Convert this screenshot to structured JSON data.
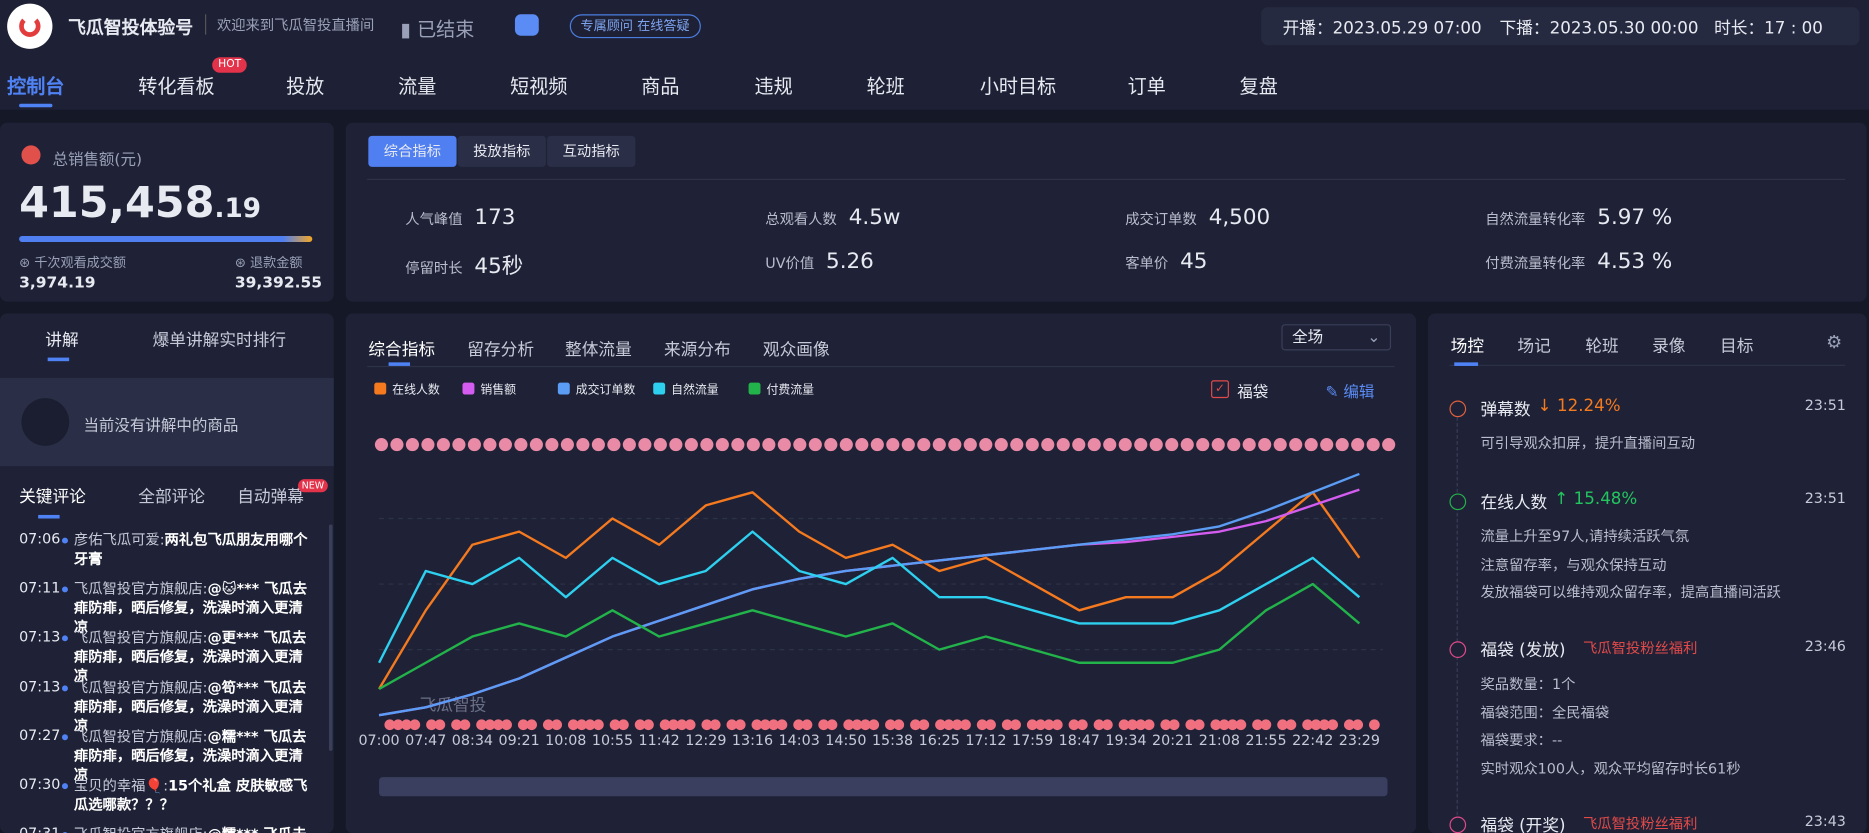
{
  "header": {
    "brand": "飞瓜智投体验号",
    "welcome": "欢迎来到飞瓜智投直播间",
    "status": "已结束",
    "advisor": "专属顾问 在线答疑",
    "start": "开播：2023.05.29 07:00",
    "end": "下播：2023.05.30 00:00",
    "duration": "时长：17 : 00"
  },
  "nav": {
    "items": [
      "控制台",
      "转化看板",
      "投放",
      "流量",
      "短视频",
      "商品",
      "违规",
      "轮班",
      "小时目标",
      "订单",
      "复盘"
    ],
    "badge": "HOT"
  },
  "sales": {
    "label": "总销售额(元)",
    "value": "415,458",
    "decimals": ".19",
    "gpm_label": "千次观看成交额",
    "gpm": "3,974.19",
    "refund_label": "退款金额",
    "refund": "39,392.55"
  },
  "metrics": {
    "tabs": [
      "综合指标",
      "投放指标",
      "互动指标"
    ],
    "items": [
      {
        "label": "人气峰值",
        "value": "173"
      },
      {
        "label": "总观看人数",
        "value": "4.5w"
      },
      {
        "label": "成交订单数",
        "value": "4,500"
      },
      {
        "label": "自然流量转化率",
        "value": "5.97 %"
      },
      {
        "label": "停留时长",
        "value": "45秒"
      },
      {
        "label": "UV价值",
        "value": "5.26"
      },
      {
        "label": "客单价",
        "value": "45"
      },
      {
        "label": "付费流量转化率",
        "value": "4.53 %"
      }
    ]
  },
  "explain": {
    "tabs": [
      "讲解",
      "爆单讲解实时排行"
    ],
    "empty": "当前没有讲解中的商品",
    "comment_tabs": [
      "关键评论",
      "全部评论",
      "自动弹幕"
    ],
    "comment_badge": "NEW",
    "comments": [
      {
        "time": "07:06",
        "user": "彦佑飞瓜可爱:",
        "text": "两礼包飞瓜朋友用哪个牙膏"
      },
      {
        "time": "07:11",
        "user": "飞瓜智投官方旗舰店:",
        "text": "@🐱*** 飞瓜去痱防痱，晒后修复，洗澡时滴入更清凉"
      },
      {
        "time": "07:13",
        "user": "飞瓜智投官方旗舰店:",
        "text": "@更*** 飞瓜去痱防痱，晒后修复，洗澡时滴入更清凉"
      },
      {
        "time": "07:13",
        "user": "飞瓜智投官方旗舰店:",
        "text": "@笱*** 飞瓜去痱防痱，晒后修复，洗澡时滴入更清凉"
      },
      {
        "time": "07:27",
        "user": "飞瓜智投官方旗舰店:",
        "text": "@糯*** 飞瓜去痱防痱，晒后修复，洗澡时滴入更清凉"
      },
      {
        "time": "07:30",
        "user": "宝贝的幸福🎈:",
        "text": "15个礼盒 皮肤敏感飞瓜选哪款？？？"
      },
      {
        "time": "07:31",
        "user": "飞瓜智投官方旗舰店:",
        "text": "@糯*** 飞瓜去痱防痱"
      }
    ]
  },
  "chart_panel": {
    "tabs": [
      "综合指标",
      "留存分析",
      "整体流量",
      "来源分布",
      "观众画像"
    ],
    "scope": "全场",
    "bag": "福袋",
    "edit": "编辑",
    "watermark": "飞瓜智投"
  },
  "chart_data": {
    "type": "line",
    "categories": [
      "07:00",
      "07:47",
      "08:34",
      "09:21",
      "10:08",
      "10:55",
      "11:42",
      "12:29",
      "13:16",
      "14:03",
      "14:50",
      "15:38",
      "16:25",
      "17:12",
      "17:59",
      "18:47",
      "19:34",
      "20:21",
      "21:08",
      "21:55",
      "22:42",
      "23:29"
    ],
    "ylim": [
      0,
      100
    ],
    "series": [
      {
        "name": "在线人数",
        "color": "#f57a1f",
        "values": [
          10,
          40,
          65,
          70,
          60,
          75,
          65,
          80,
          85,
          70,
          60,
          65,
          55,
          60,
          50,
          40,
          45,
          45,
          55,
          70,
          85,
          60
        ]
      },
      {
        "name": "销售额",
        "color": "#d55cf0",
        "values": [
          0,
          3,
          8,
          14,
          22,
          30,
          36,
          42,
          48,
          52,
          55,
          57,
          59,
          61,
          63,
          65,
          66,
          68,
          70,
          74,
          80,
          86
        ]
      },
      {
        "name": "成交订单数",
        "color": "#5b9cf5",
        "values": [
          0,
          3,
          8,
          14,
          22,
          30,
          36,
          42,
          48,
          52,
          55,
          57,
          59,
          61,
          63,
          65,
          67,
          69,
          72,
          78,
          85,
          92
        ]
      },
      {
        "name": "自然流量",
        "color": "#2ed0f0",
        "values": [
          20,
          55,
          50,
          60,
          45,
          60,
          50,
          55,
          70,
          55,
          50,
          60,
          45,
          45,
          40,
          35,
          35,
          35,
          40,
          50,
          60,
          45
        ]
      },
      {
        "name": "付费流量",
        "color": "#22b34a",
        "values": [
          10,
          20,
          30,
          35,
          30,
          40,
          30,
          35,
          40,
          35,
          30,
          35,
          25,
          30,
          25,
          20,
          20,
          20,
          25,
          40,
          50,
          35
        ]
      }
    ]
  },
  "control": {
    "tabs": [
      "场控",
      "场记",
      "轮班",
      "录像",
      "目标"
    ],
    "events": [
      {
        "title": "弹幕数",
        "change": "↓ 12.24%",
        "time": "23:51",
        "lines": [
          "可引导观众扣屏，提升直播间互动"
        ]
      },
      {
        "title": "在线人数",
        "change": "↑ 15.48%",
        "time": "23:51",
        "lines": [
          "流量上升至97人,请持续活跃气氛",
          "注意留存率，与观众保持互动",
          "发放福袋可以维持观众留存率，提高直播间活跃"
        ]
      },
      {
        "title": "福袋 (发放)",
        "change": "飞瓜智投粉丝福利",
        "time": "23:46",
        "lines": [
          "奖品数量：1个",
          "福袋范围：全民福袋",
          "福袋要求：--",
          "实时观众100人，观众平均留存时长61秒"
        ]
      },
      {
        "title": "福袋 (开奖)",
        "change": "飞瓜智投粉丝福利",
        "time": "23:43",
        "lines": []
      }
    ]
  }
}
